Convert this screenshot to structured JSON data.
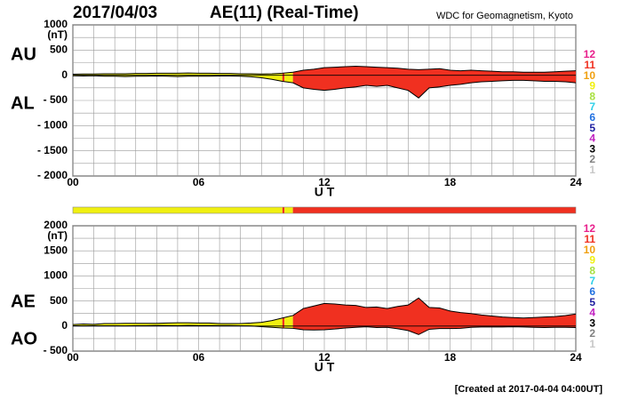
{
  "header": {
    "date": "2017/04/03",
    "title": "AE(11) (Real-Time)",
    "source": "WDC for Geomagnetism, Kyoto"
  },
  "footer": "[Created at 2017-04-04 04:00UT]",
  "stations": [
    12,
    11,
    10,
    9,
    8,
    7,
    6,
    5,
    4,
    3,
    2,
    1
  ],
  "station_colors": [
    "#e8208c",
    "#f03020",
    "#f0a010",
    "#f0f010",
    "#a8e040",
    "#30d0e8",
    "#2070e0",
    "#2020a0",
    "#c020c0",
    "#000000",
    "#808080",
    "#c8c8c8"
  ],
  "coverage": [
    {
      "start": 0,
      "end": 10,
      "stations": 9
    },
    {
      "start": 10,
      "end": 10.1,
      "stations": 11
    },
    {
      "start": 10.1,
      "end": 10.5,
      "stations": 9
    },
    {
      "start": 10.5,
      "end": 24,
      "stations": 11
    }
  ],
  "chart_data": [
    {
      "type": "band",
      "unit": "(nT)",
      "xlabel": "U T",
      "grid": true,
      "x": [
        0,
        0.5,
        1,
        1.5,
        2,
        2.5,
        3,
        3.5,
        4,
        4.5,
        5,
        5.5,
        6,
        6.5,
        7,
        7.5,
        8,
        8.5,
        9,
        9.5,
        10,
        10.5,
        11,
        11.5,
        12,
        12.5,
        13,
        13.5,
        14,
        14.5,
        15,
        15.5,
        16,
        16.5,
        17,
        17.5,
        18,
        18.5,
        19,
        19.5,
        20,
        20.5,
        21,
        21.5,
        22,
        22.5,
        23,
        23.5,
        24
      ],
      "series": [
        {
          "name": "AU",
          "values": [
            20,
            25,
            25,
            30,
            30,
            30,
            35,
            35,
            40,
            40,
            40,
            45,
            40,
            40,
            35,
            35,
            30,
            30,
            25,
            30,
            40,
            60,
            100,
            120,
            150,
            160,
            170,
            180,
            170,
            160,
            150,
            140,
            120,
            110,
            120,
            130,
            100,
            90,
            100,
            90,
            80,
            70,
            70,
            60,
            60,
            60,
            70,
            80,
            90
          ]
        },
        {
          "name": "AL",
          "values": [
            -10,
            -15,
            -10,
            -20,
            -20,
            -25,
            -20,
            -20,
            -15,
            -20,
            -25,
            -20,
            -20,
            -20,
            -15,
            -15,
            -20,
            -30,
            -50,
            -80,
            -120,
            -150,
            -250,
            -280,
            -300,
            -280,
            -250,
            -230,
            -200,
            -220,
            -200,
            -250,
            -300,
            -450,
            -250,
            -230,
            -200,
            -180,
            -150,
            -130,
            -120,
            -110,
            -100,
            -100,
            -110,
            -120,
            -120,
            -130,
            -150
          ]
        }
      ],
      "xlim": [
        0,
        24
      ],
      "xticks": [
        {
          "value": 0,
          "label": "00"
        },
        {
          "value": 6,
          "label": "06"
        },
        12,
        18,
        24
      ],
      "ylim": [
        -2000,
        1000
      ],
      "yticks": [
        {
          "value": -2000,
          "label": "- 2000"
        },
        {
          "value": -1500,
          "label": "- 1500"
        },
        {
          "value": -1000,
          "label": "- 1000"
        },
        {
          "value": -500,
          "label": "- 500"
        },
        0,
        500,
        1000
      ]
    },
    {
      "type": "band",
      "unit": "(nT)",
      "xlabel": "U T",
      "grid": true,
      "x": [
        0,
        0.5,
        1,
        1.5,
        2,
        2.5,
        3,
        3.5,
        4,
        4.5,
        5,
        5.5,
        6,
        6.5,
        7,
        7.5,
        8,
        8.5,
        9,
        9.5,
        10,
        10.5,
        11,
        11.5,
        12,
        12.5,
        13,
        13.5,
        14,
        14.5,
        15,
        15.5,
        16,
        16.5,
        17,
        17.5,
        18,
        18.5,
        19,
        19.5,
        20,
        20.5,
        21,
        21.5,
        22,
        22.5,
        23,
        23.5,
        24
      ],
      "series": [
        {
          "name": "AE",
          "values": [
            30,
            40,
            35,
            50,
            50,
            55,
            55,
            55,
            55,
            60,
            65,
            65,
            60,
            60,
            50,
            50,
            50,
            60,
            75,
            110,
            160,
            210,
            350,
            400,
            450,
            440,
            420,
            410,
            370,
            380,
            350,
            390,
            420,
            560,
            370,
            360,
            300,
            270,
            250,
            220,
            200,
            180,
            170,
            160,
            170,
            180,
            190,
            210,
            240
          ]
        },
        {
          "name": "AO",
          "values": [
            5,
            5,
            7.5,
            5,
            5,
            2.5,
            7.5,
            7.5,
            12.5,
            10,
            7.5,
            12.5,
            10,
            10,
            10,
            10,
            5,
            0,
            -12.5,
            -25,
            -40,
            -45,
            -75,
            -80,
            -75,
            -60,
            -40,
            -25,
            -15,
            -30,
            -25,
            -55,
            -90,
            -170,
            -65,
            -50,
            -50,
            -45,
            -25,
            -20,
            -20,
            -20,
            -15,
            -20,
            -25,
            -30,
            -25,
            -25,
            -30
          ]
        }
      ],
      "xlim": [
        0,
        24
      ],
      "xticks": [
        {
          "value": 0,
          "label": "00"
        },
        {
          "value": 6,
          "label": "06"
        },
        12,
        18,
        24
      ],
      "ylim": [
        -500,
        2000
      ],
      "yticks": [
        {
          "value": -500,
          "label": "- 500"
        },
        0,
        500,
        1000,
        1500,
        2000
      ]
    }
  ]
}
